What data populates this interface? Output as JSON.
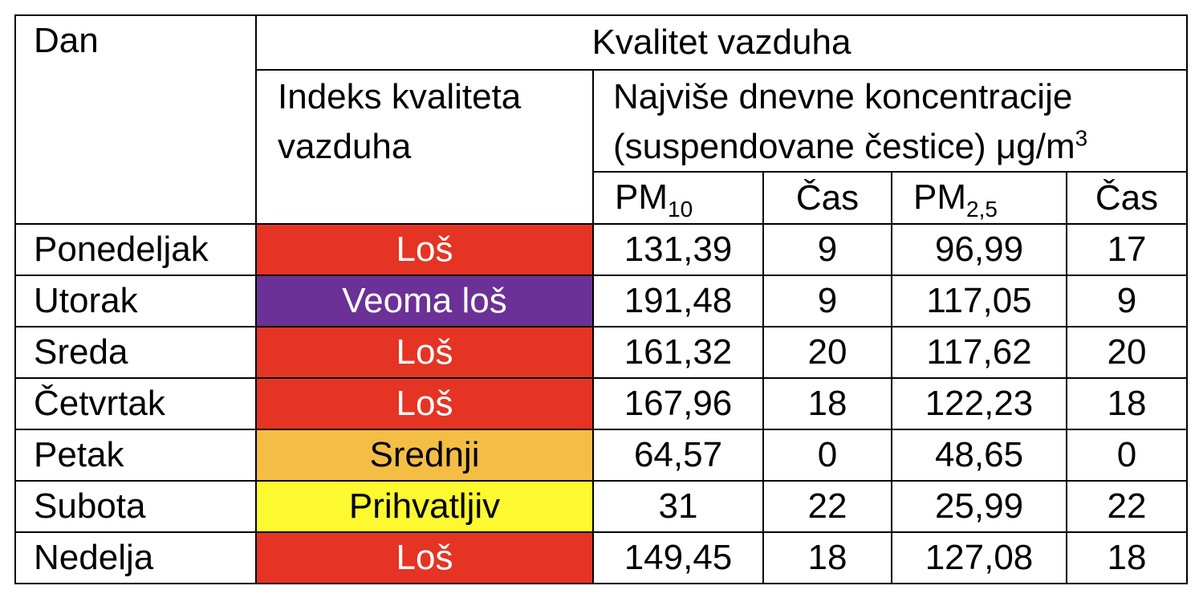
{
  "table": {
    "header": {
      "day": "Dan",
      "air_quality": "Kvalitet vazduha",
      "index": [
        "Indeks kvaliteta",
        "vazduha"
      ],
      "concentration": [
        "Najviše dnevne koncentracije",
        "(suspendovane čestice) μg/m"
      ],
      "concentration_unit_sup": "3",
      "pm10": {
        "text": "PM",
        "sub": "10"
      },
      "time_1": "Čas",
      "pm25": {
        "text": "PM",
        "sub": "2,5"
      },
      "time_2": "Čas"
    },
    "rows": [
      {
        "day": "Ponedeljak",
        "index": "Loš",
        "color": "#e53424",
        "text_color": "#ffffff",
        "pm10": "131,39",
        "time_pm10": "9",
        "pm25": "96,99",
        "time_pm25": "17"
      },
      {
        "day": "Utorak",
        "index": "Veoma loš",
        "color": "#6b3196",
        "text_color": "#ffffff",
        "pm10": "191,48",
        "time_pm10": "9",
        "pm25": "117,05",
        "time_pm25": "9"
      },
      {
        "day": "Sreda",
        "index": "Loš",
        "color": "#e53424",
        "text_color": "#ffffff",
        "pm10": "161,32",
        "time_pm10": "20",
        "pm25": "117,62",
        "time_pm25": "20"
      },
      {
        "day": "Četvrtak",
        "index": "Loš",
        "color": "#e53424",
        "text_color": "#ffffff",
        "pm10": "167,96",
        "time_pm10": "18",
        "pm25": "122,23",
        "time_pm25": "18"
      },
      {
        "day": "Petak",
        "index": "Srednji",
        "color": "#f4be45",
        "text_color": "#000000",
        "pm10": "64,57",
        "time_pm10": "0",
        "pm25": "48,65",
        "time_pm25": "0"
      },
      {
        "day": "Subota",
        "index": "Prihvatljiv",
        "color": "#fdf930",
        "text_color": "#000000",
        "pm10": "31",
        "time_pm10": "22",
        "pm25": "25,99",
        "time_pm25": "22"
      },
      {
        "day": "Nedelja",
        "index": "Loš",
        "color": "#e53424",
        "text_color": "#ffffff",
        "pm10": "149,45",
        "time_pm10": "18",
        "pm25": "127,08",
        "time_pm25": "18"
      }
    ]
  }
}
